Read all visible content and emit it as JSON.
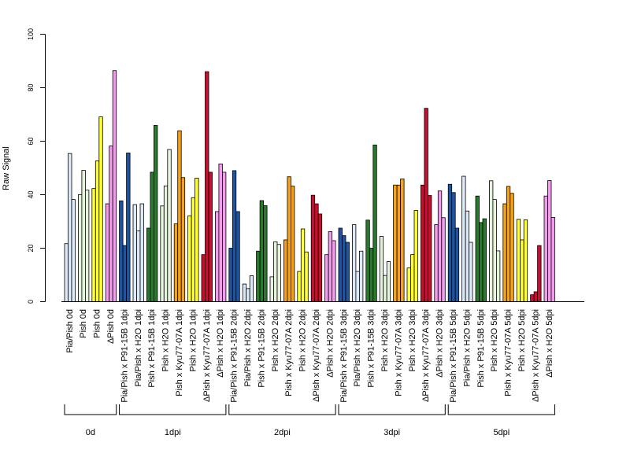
{
  "chart_data": {
    "type": "bar",
    "ylabel": "Raw Signal",
    "ylim": [
      0,
      100
    ],
    "yticks": [
      "0",
      "20",
      "40",
      "60",
      "80",
      "100"
    ],
    "grid": false,
    "legend": "none",
    "categories": [
      {
        "label": "Pia/Pish 0d",
        "color": "#DCE9F8",
        "values": [
          21.7,
          55.4,
          38.2
        ]
      },
      {
        "label": "Pish 0d",
        "color": "#E6F4DE",
        "values": [
          40.0,
          49.1,
          41.7
        ]
      },
      {
        "label": "Pish 0d",
        "color": "#FFFF33",
        "values": [
          42.3,
          52.6,
          69.1
        ]
      },
      {
        "label": "ΔPish 0d",
        "color": "#F49CEE",
        "values": [
          36.6,
          58.2,
          86.4
        ]
      },
      {
        "label": "Pia/Pish x P91-15B 1dpi",
        "color": "#1F55A0",
        "values": [
          37.7,
          21.0,
          55.6
        ]
      },
      {
        "label": "Pia/Pish x H2O 1dpi",
        "color": "#DCE9F8",
        "values": [
          36.3,
          26.5,
          36.6
        ]
      },
      {
        "label": "Pish x P91-15B 1dpi",
        "color": "#2A7A2E",
        "values": [
          27.5,
          48.4,
          65.9
        ]
      },
      {
        "label": "Pish x H2O 1dpi",
        "color": "#E6F4DE",
        "values": [
          35.8,
          43.3,
          56.9
        ]
      },
      {
        "label": "Pish x Kyu77-07A 1dpi",
        "color": "#F7A21B",
        "values": [
          29.1,
          63.9,
          46.4
        ]
      },
      {
        "label": "Pish x H2O 1dpi",
        "color": "#FFFF33",
        "values": [
          32.1,
          38.9,
          46.2
        ]
      },
      {
        "label": "ΔPish x Kyu77-07A 1dpi",
        "color": "#C8102E",
        "values": [
          17.6,
          86.0,
          48.4
        ]
      },
      {
        "label": "ΔPish x H2O 1dpi",
        "color": "#F49CEE",
        "values": [
          33.7,
          51.5,
          48.4
        ]
      },
      {
        "label": "Pia/Pish x P91-15B 2dpi",
        "color": "#1F55A0",
        "values": [
          20.0,
          49.0,
          33.7
        ]
      },
      {
        "label": "Pia/Pish x H2O 2dpi",
        "color": "#DCE9F8",
        "values": [
          6.6,
          4.9,
          9.7
        ]
      },
      {
        "label": "Pish x P91-15B 2dpi",
        "color": "#2A7A2E",
        "values": [
          18.9,
          37.8,
          35.9
        ]
      },
      {
        "label": "Pish x H2O 2dpi",
        "color": "#E6F4DE",
        "values": [
          9.3,
          22.4,
          21.4
        ]
      },
      {
        "label": "Pish x Kyu77-07A 2dpi",
        "color": "#F7A21B",
        "values": [
          23.1,
          46.7,
          43.2
        ]
      },
      {
        "label": "Pish x H2O 2dpi",
        "color": "#FFFF33",
        "values": [
          11.3,
          27.2,
          18.6
        ]
      },
      {
        "label": "ΔPish x Kyu77-07A 2dpi",
        "color": "#C8102E",
        "values": [
          39.8,
          36.6,
          32.8
        ]
      },
      {
        "label": "ΔPish x H2O 2dpi",
        "color": "#F49CEE",
        "values": [
          17.6,
          26.2,
          22.8
        ]
      },
      {
        "label": "Pia/Pish x P91-15B 3dpi",
        "color": "#1F55A0",
        "values": [
          27.5,
          24.7,
          22.2
        ]
      },
      {
        "label": "Pia/Pish x H2O 3dpi",
        "color": "#DCE9F8",
        "values": [
          28.8,
          11.3,
          18.9
        ]
      },
      {
        "label": "Pish x P91-15B 3dpi",
        "color": "#2A7A2E",
        "values": [
          30.5,
          20.0,
          58.6
        ]
      },
      {
        "label": "Pish x H2O 3dpi",
        "color": "#E6F4DE",
        "values": [
          24.4,
          9.8,
          15.0
        ]
      },
      {
        "label": "Pish x Kyu77-07A 3dpi",
        "color": "#F7A21B",
        "values": [
          43.6,
          43.6,
          45.9
        ]
      },
      {
        "label": "Pish x H2O 3dpi",
        "color": "#FFFF33",
        "values": [
          12.6,
          17.6,
          34.1
        ]
      },
      {
        "label": "ΔPish x Kyu77-07A 3dpi",
        "color": "#C8102E",
        "values": [
          43.6,
          72.3,
          39.7
        ]
      },
      {
        "label": "ΔPish x H2O 3dpi",
        "color": "#F49CEE",
        "values": [
          28.8,
          41.4,
          31.4
        ]
      },
      {
        "label": "Pia/Pish x P91-15B 5dpi",
        "color": "#1F55A0",
        "values": [
          43.9,
          40.8,
          27.5
        ]
      },
      {
        "label": "Pia/Pish x H2O 5dpi",
        "color": "#DCE9F8",
        "values": [
          46.9,
          33.9,
          22.2
        ]
      },
      {
        "label": "Pish x P91-15B 5dpi",
        "color": "#2A7A2E",
        "values": [
          39.5,
          29.6,
          31.0
        ]
      },
      {
        "label": "Pish x H2O 5dpi",
        "color": "#E6F4DE",
        "values": [
          45.2,
          38.2,
          19.0
        ]
      },
      {
        "label": "Pish x Kyu77-07A 5dpi",
        "color": "#F7A21B",
        "values": [
          36.6,
          43.1,
          40.5
        ]
      },
      {
        "label": "Pish x H2O 5dpi",
        "color": "#FFFF33",
        "values": [
          30.8,
          23.1,
          30.6
        ]
      },
      {
        "label": "ΔPish x Kyu77-07A 5dpi",
        "color": "#C8102E",
        "values": [
          2.6,
          3.7,
          21.0
        ]
      },
      {
        "label": "ΔPish x H2O 5dpi",
        "color": "#F49CEE",
        "values": [
          39.5,
          45.3,
          31.5
        ]
      }
    ],
    "groups": [
      {
        "label": "0d",
        "from": 0,
        "to": 3
      },
      {
        "label": "1dpi",
        "from": 4,
        "to": 11
      },
      {
        "label": "2dpi",
        "from": 12,
        "to": 19
      },
      {
        "label": "3dpi",
        "from": 20,
        "to": 27
      },
      {
        "label": "5dpi",
        "from": 28,
        "to": 35
      }
    ]
  }
}
